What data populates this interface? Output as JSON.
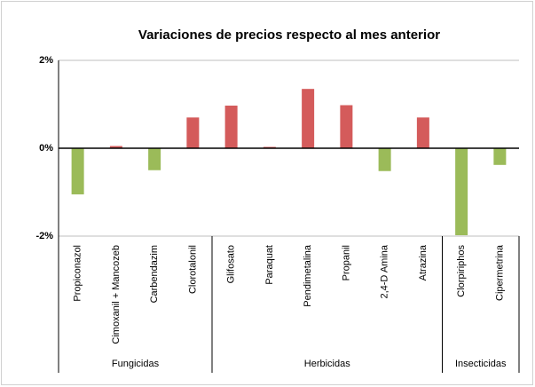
{
  "chart_data": {
    "type": "bar",
    "title": "Variaciones de precios respecto al mes anterior",
    "groups": [
      {
        "name": "Fungicidas",
        "categories": [
          "Propiconazol",
          "Cimoxanil + Mancozeb",
          "Carbendazim",
          "Clorotalonil"
        ]
      },
      {
        "name": "Herbicidas",
        "categories": [
          "Glifosato",
          "Paraquat",
          "Pendimetalina",
          "Propanil",
          "2,4-D Amina",
          "Atrazina"
        ]
      },
      {
        "name": "Insecticidas",
        "categories": [
          "Clorpiriphos",
          "Cipermetrina"
        ]
      }
    ],
    "values": [
      -1.05,
      0.05,
      -0.5,
      0.7,
      0.97,
      0.03,
      1.35,
      0.98,
      -0.52,
      0.7,
      -1.98,
      -0.38
    ],
    "positive_color": "#d45b5b",
    "negative_color": "#9bbb59",
    "ylim": [
      -2,
      2
    ],
    "yticks": [
      {
        "value": 2,
        "label": "2%"
      },
      {
        "value": 0,
        "label": "0%"
      },
      {
        "value": -2,
        "label": "-2%"
      }
    ],
    "grid": true
  }
}
